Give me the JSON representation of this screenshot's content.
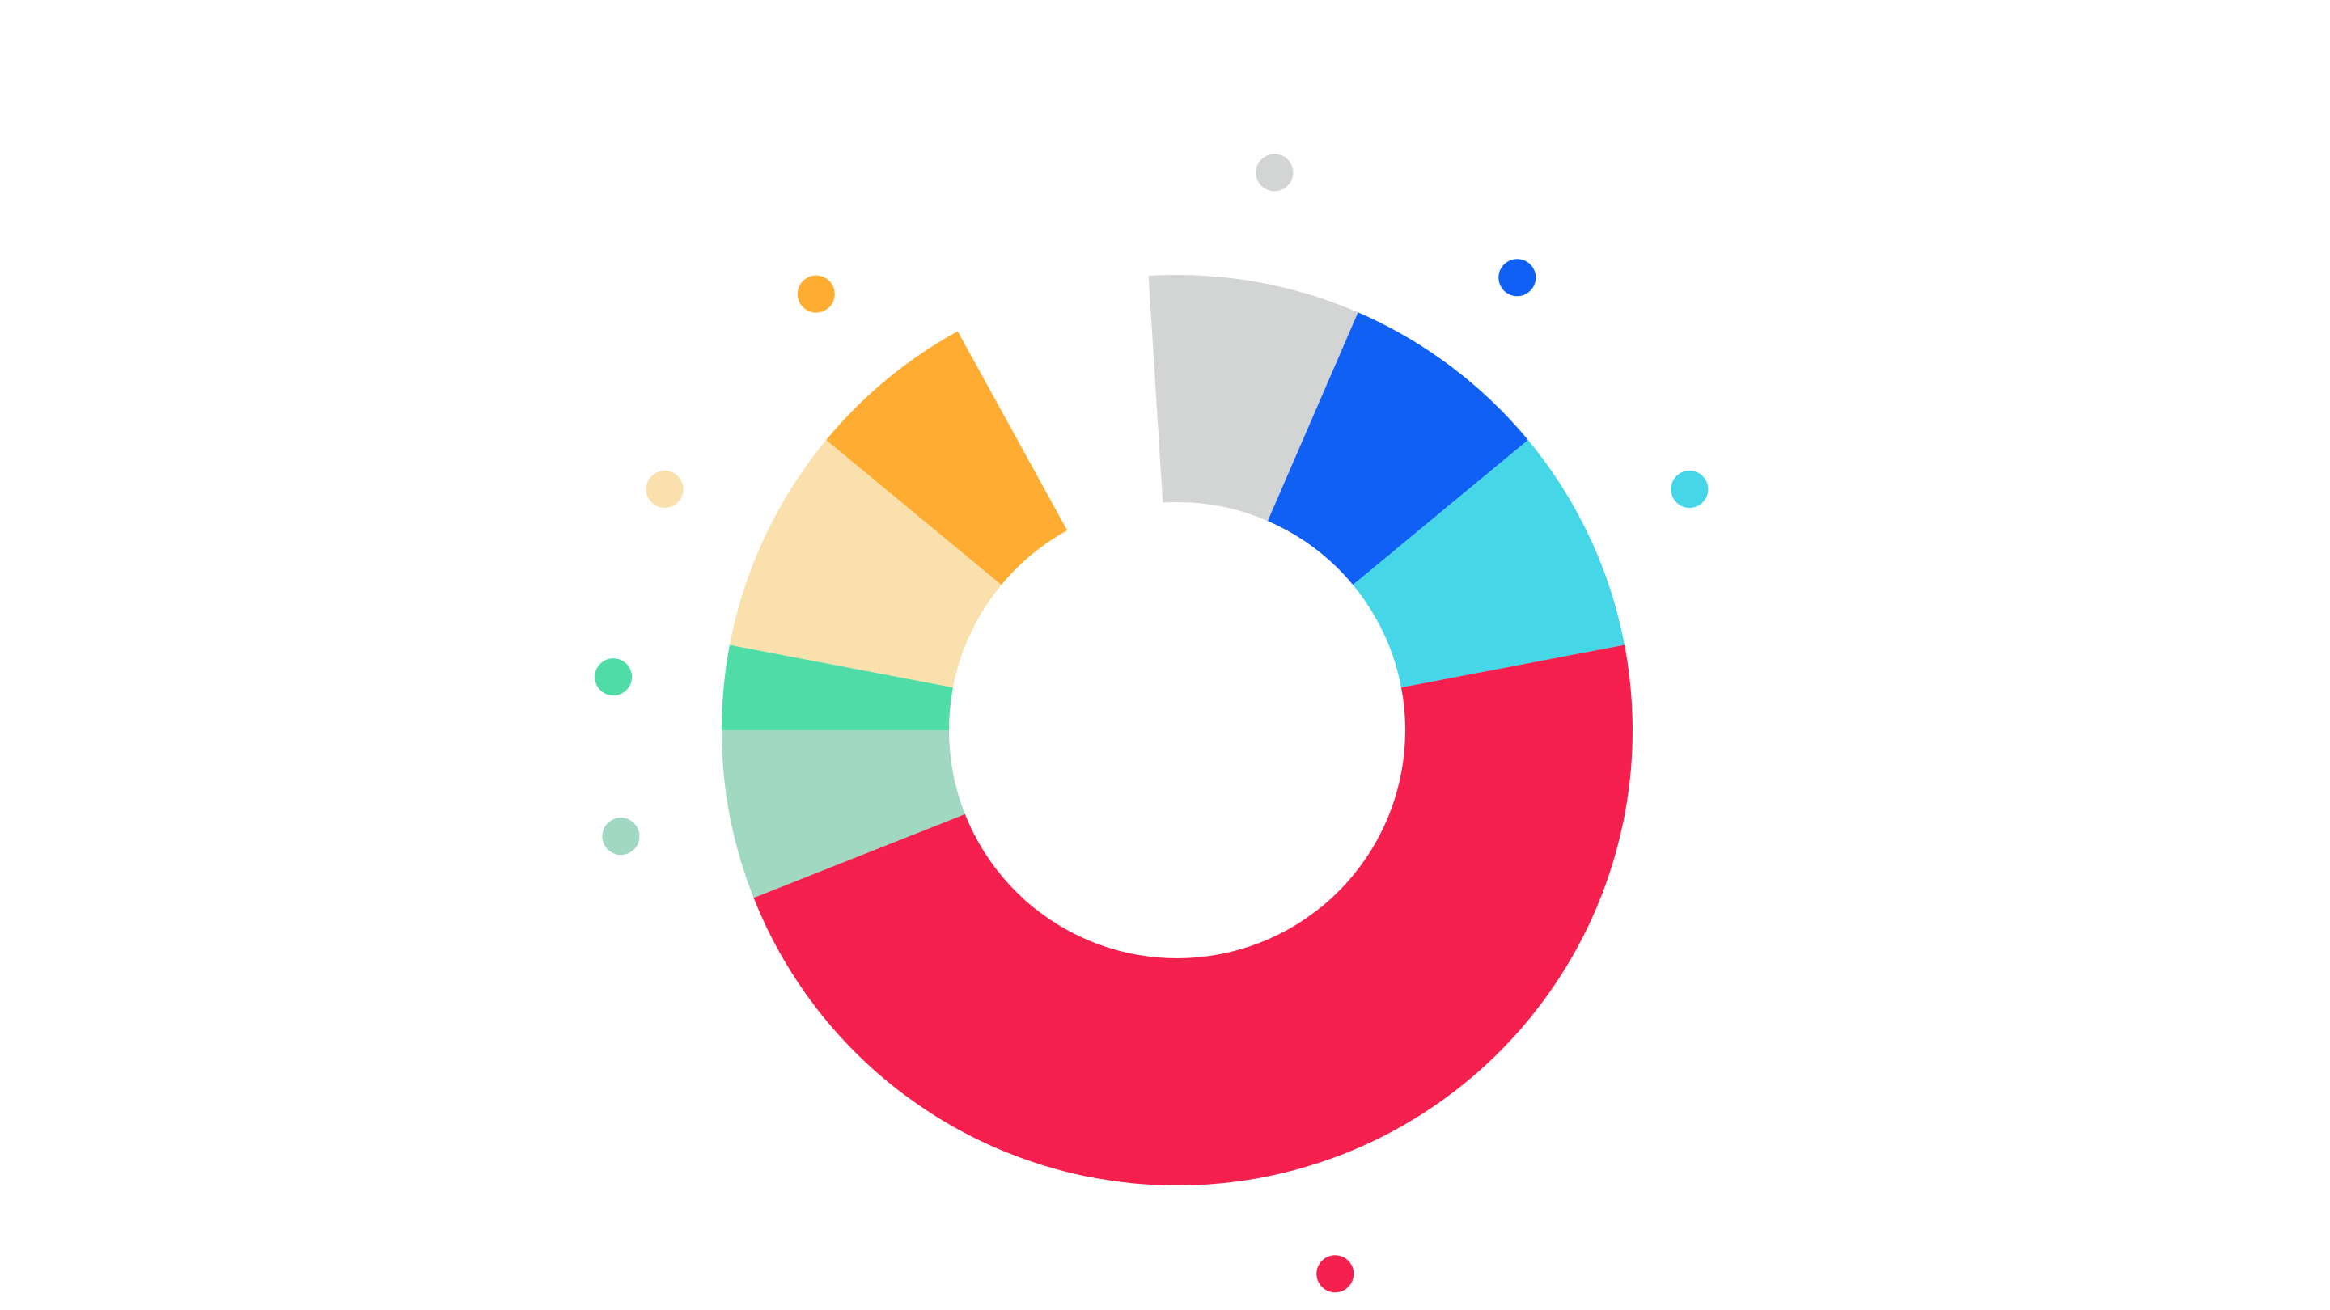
{
  "chart_data": {
    "type": "pie",
    "variant": "donut",
    "title": "",
    "legend": "none",
    "grid": false,
    "gap_after_last": true,
    "slices": [
      {
        "value": 7.5,
        "color": "#D3D5D4",
        "color_name": "light-gray"
      },
      {
        "value": 7.5,
        "color": "#1060F5",
        "color_name": "blue"
      },
      {
        "value": 8.0,
        "color": "#45D6E8",
        "color_name": "cyan"
      },
      {
        "value": 47.0,
        "color": "#F5204D",
        "color_name": "red"
      },
      {
        "value": 6.0,
        "color": "#A0D8C2",
        "color_name": "sage-green"
      },
      {
        "value": 3.0,
        "color": "#4FDCA6",
        "color_name": "green"
      },
      {
        "value": 8.0,
        "color": "#FAE0AC",
        "color_name": "light-peach"
      },
      {
        "value": 6.0,
        "color": "#FEAC32",
        "color_name": "orange"
      }
    ]
  }
}
